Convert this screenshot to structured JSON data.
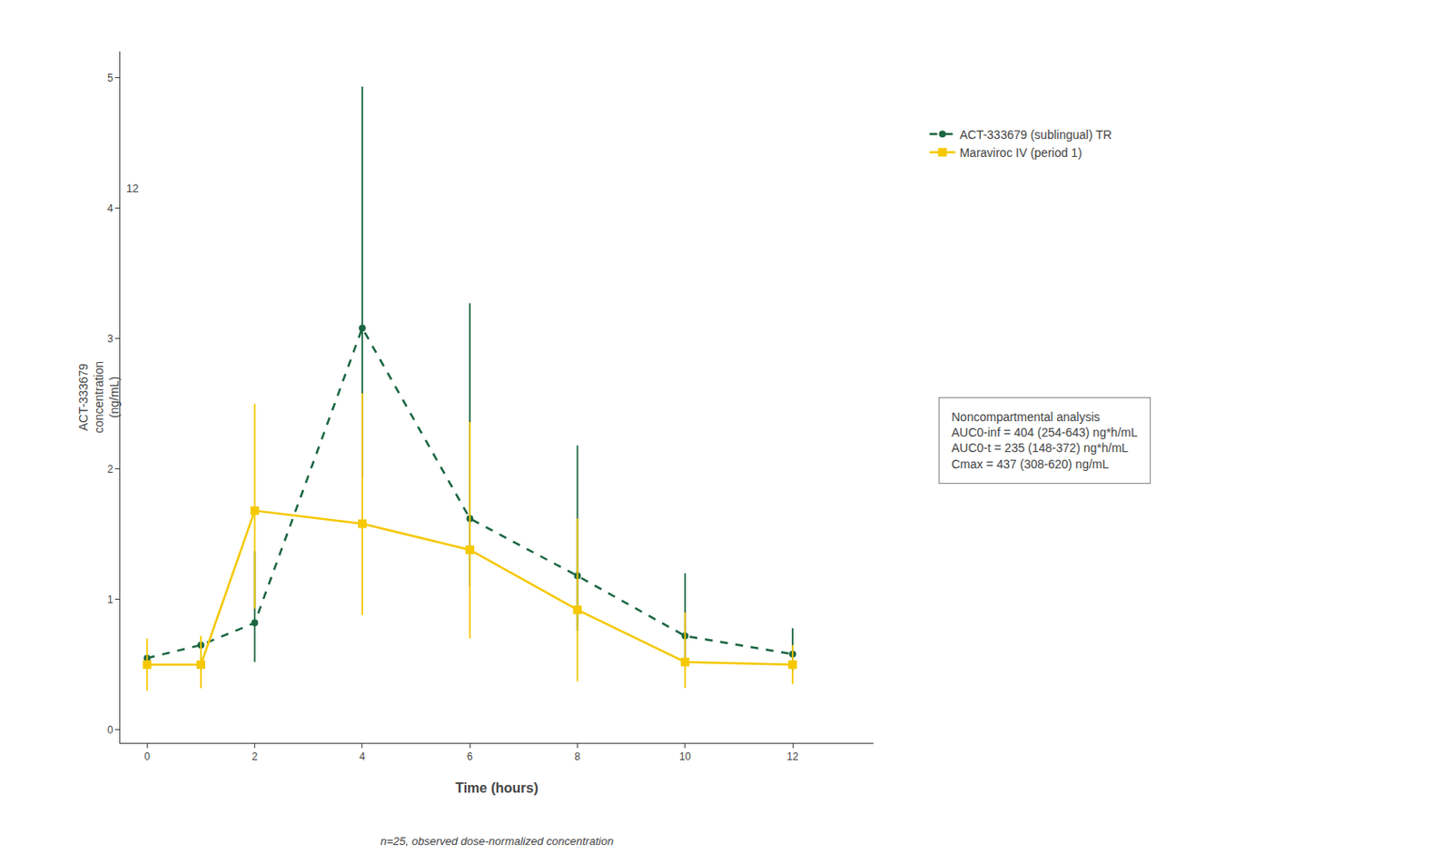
{
  "chart_data": {
    "type": "line",
    "xlabel": "Time (hours)",
    "ylabel": [
      "ACT-333679",
      "concentration",
      "(ng/mL)"
    ],
    "caption": "n=25, observed dose-normalized concentration",
    "xlim": [
      -0.5,
      13.5
    ],
    "ylim": [
      -0.1,
      5.2
    ],
    "xticks": [
      0,
      2,
      4,
      6,
      8,
      10,
      12
    ],
    "yticks": [
      0,
      1,
      2,
      3,
      4,
      5
    ],
    "grid": false,
    "legend": "right",
    "annotations": [
      {
        "text": "12",
        "x": 0,
        "y": 4.15
      }
    ],
    "box_title": "Noncompartmental analysis",
    "box_lines": [
      "AUC0-inf = 404 (254-643) ng*h/mL",
      "AUC0-t = 235 (148-372) ng*h/mL",
      "Cmax = 437 (308-620) ng/mL"
    ],
    "series": [
      {
        "name": "ACT-333679 (sublingual) TR",
        "color": "#1a6640",
        "marker": "circle",
        "line_style": "dash",
        "x": [
          0,
          1,
          2,
          4,
          6,
          8,
          10,
          12
        ],
        "values": [
          0.55,
          0.65,
          0.82,
          3.08,
          1.62,
          1.18,
          0.72,
          0.58
        ],
        "err_lo": [
          0.0,
          0.0,
          0.3,
          1.15,
          0.52,
          0.42,
          0.22,
          0.13
        ],
        "err_hi": [
          0.0,
          0.0,
          0.55,
          1.85,
          1.65,
          1.0,
          0.48,
          0.2
        ]
      },
      {
        "name": "Maraviroc IV (period 1)",
        "color": "#f5c800",
        "marker": "square",
        "line_style": "solid",
        "x": [
          0,
          1,
          2,
          4,
          6,
          8,
          10,
          12
        ],
        "values": [
          0.5,
          0.5,
          1.68,
          1.58,
          1.38,
          0.92,
          0.52,
          0.5
        ],
        "err_lo": [
          0.2,
          0.18,
          0.75,
          0.7,
          0.68,
          0.55,
          0.2,
          0.15
        ],
        "err_hi": [
          0.2,
          0.22,
          0.82,
          1.0,
          0.98,
          0.7,
          0.38,
          0.15
        ]
      }
    ]
  }
}
